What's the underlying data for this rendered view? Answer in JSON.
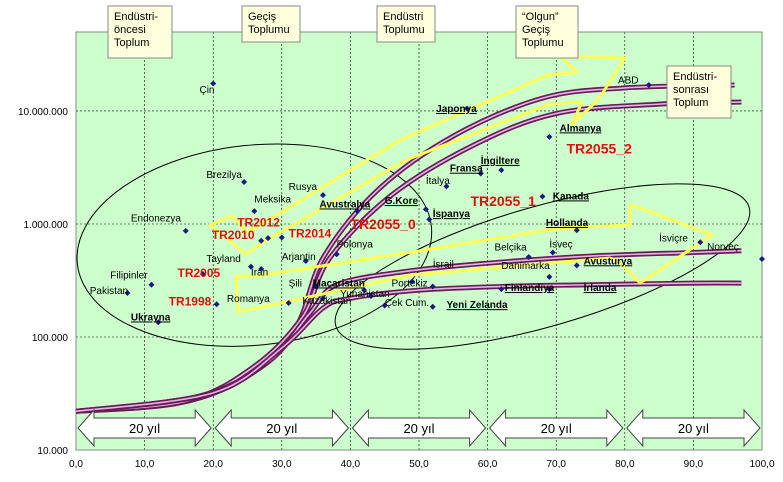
{
  "chart_data": {
    "type": "scatter",
    "title": "",
    "xlabel": "",
    "ylabel": "",
    "xlim": [
      0,
      100
    ],
    "ylim": [
      10000,
      50000000
    ],
    "y_scale": "log",
    "grid": true,
    "x_ticks": [
      "0,0",
      "10,0",
      "20,0",
      "30,0",
      "40,0",
      "50,0",
      "60,0",
      "70,0",
      "80,0",
      "90,0",
      "100,0"
    ],
    "y_ticks": [
      {
        "value": 10000,
        "label": "10.000"
      },
      {
        "value": 100000,
        "label": "100.000"
      },
      {
        "value": 1000000,
        "label": "1.000.000"
      },
      {
        "value": 10000000,
        "label": "10.000.000"
      }
    ],
    "stages": [
      {
        "label": "Endüstri-\nöncesi\nToplum",
        "x": 5.5
      },
      {
        "label": "Geçiş\nToplumu",
        "x": 25.0
      },
      {
        "label": "Endüstri\nToplumu",
        "x": 44.5
      },
      {
        "label": "“Olgun”\nGeçiş\nToplumu",
        "x": 64.5
      },
      {
        "label": "Endüstri-\nsonrası\nToplum",
        "x": 87.0
      }
    ],
    "period_arrows": [
      {
        "label": "20 yıl",
        "from": 0,
        "to": 20
      },
      {
        "label": "20 yıl",
        "from": 20,
        "to": 40
      },
      {
        "label": "20 yıl",
        "from": 40,
        "to": 60
      },
      {
        "label": "20 yıl",
        "from": 60,
        "to": 80
      },
      {
        "label": "20 yıl",
        "from": 80,
        "to": 100
      }
    ],
    "points": [
      {
        "name": "Çin",
        "x": 20.0,
        "y": 17500000,
        "style": "normal"
      },
      {
        "name": "ABD",
        "x": 83.5,
        "y": 17000000,
        "style": "normal"
      },
      {
        "name": "Japonya",
        "x": 57.0,
        "y": 10500000,
        "style": "underline"
      },
      {
        "name": "Almanya",
        "x": 69.0,
        "y": 5900000,
        "style": "underline"
      },
      {
        "name": "İngiltere",
        "x": 62.0,
        "y": 3000000,
        "style": "underline"
      },
      {
        "name": "Fransa",
        "x": 59.0,
        "y": 2800000,
        "style": "underline"
      },
      {
        "name": "İtalya",
        "x": 54.0,
        "y": 2150000,
        "style": "normal"
      },
      {
        "name": "Kanada",
        "x": 68.0,
        "y": 1750000,
        "style": "underline"
      },
      {
        "name": "Brezilya",
        "x": 24.5,
        "y": 2350000,
        "style": "normal"
      },
      {
        "name": "Rusya",
        "x": 36.0,
        "y": 1800000,
        "style": "normal"
      },
      {
        "name": "Meksika",
        "x": 26.0,
        "y": 1300000,
        "style": "normal"
      },
      {
        "name": "Avustralya",
        "x": 41.0,
        "y": 1300000,
        "style": "underline"
      },
      {
        "name": "G.Kore",
        "x": 51.0,
        "y": 1350000,
        "style": "underline"
      },
      {
        "name": "İspanya",
        "x": 51.5,
        "y": 1100000,
        "style": "underline"
      },
      {
        "name": "Hollanda",
        "x": 73.0,
        "y": 880000,
        "style": "underline"
      },
      {
        "name": "Endonezya",
        "x": 16.0,
        "y": 870000,
        "style": "normal"
      },
      {
        "name": "TR2012",
        "x": 28.0,
        "y": 750000,
        "style": "normal"
      },
      {
        "name": "TR2010",
        "x": 27.0,
        "y": 710000,
        "style": "normal"
      },
      {
        "name": "TR2014",
        "x": 30.0,
        "y": 760000,
        "style": "normal"
      },
      {
        "name": "İsviçre",
        "x": 91.0,
        "y": 690000,
        "style": "normal"
      },
      {
        "name": "Norveç",
        "x": 100.0,
        "y": 490000,
        "style": "normal"
      },
      {
        "name": "Polonya",
        "x": 38.0,
        "y": 540000,
        "style": "normal"
      },
      {
        "name": "Belçika",
        "x": 66.0,
        "y": 510000,
        "style": "normal"
      },
      {
        "name": "İsveç",
        "x": 69.5,
        "y": 560000,
        "style": "normal"
      },
      {
        "name": "Arjantin",
        "x": 33.5,
        "y": 470000,
        "style": "normal"
      },
      {
        "name": "Avusturya",
        "x": 73.0,
        "y": 430000,
        "style": "underline"
      },
      {
        "name": "Tayland",
        "x": 25.5,
        "y": 420000,
        "style": "normal"
      },
      {
        "name": "İran",
        "x": 27.0,
        "y": 400000,
        "style": "normal"
      },
      {
        "name": "Danimarka",
        "x": 69.0,
        "y": 340000,
        "style": "normal"
      },
      {
        "name": "TR2005",
        "x": 18.5,
        "y": 360000,
        "style": "normal"
      },
      {
        "name": "Filipinler",
        "x": 11.0,
        "y": 290000,
        "style": "normal"
      },
      {
        "name": "İsrail",
        "x": 49.0,
        "y": 310000,
        "style": "normal"
      },
      {
        "name": "Şili",
        "x": 35.0,
        "y": 280000,
        "style": "normal"
      },
      {
        "name": "Macaristan",
        "x": 42.0,
        "y": 260000,
        "style": "underline"
      },
      {
        "name": "Portekiz",
        "x": 52.0,
        "y": 280000,
        "style": "normal"
      },
      {
        "name": "Finlandiya",
        "x": 62.0,
        "y": 265000,
        "style": "underline"
      },
      {
        "name": "İrlanda",
        "x": 69.0,
        "y": 265000,
        "style": "underline"
      },
      {
        "name": "Pakistan",
        "x": 7.5,
        "y": 245000,
        "style": "normal"
      },
      {
        "name": "Kazakistan",
        "x": 36.0,
        "y": 220000,
        "style": "normal"
      },
      {
        "name": "Romanya",
        "x": 31.0,
        "y": 200000,
        "style": "normal"
      },
      {
        "name": "Yunanistan",
        "x": 43.0,
        "y": 230000,
        "style": "normal"
      },
      {
        "name": "Çek Cum.",
        "x": 45.0,
        "y": 190000,
        "style": "normal"
      },
      {
        "name": "Yeni Zelanda",
        "x": 52.0,
        "y": 185000,
        "style": "underline"
      },
      {
        "name": "TR1998",
        "x": 20.5,
        "y": 195000,
        "style": "normal"
      },
      {
        "name": "Ukrayna",
        "x": 12.0,
        "y": 135000,
        "style": "underline"
      }
    ],
    "labels": [
      {
        "text": "Çin",
        "x": 18.0,
        "y": 14500000,
        "style": "normal"
      },
      {
        "text": "ABD",
        "x": 79.0,
        "y": 17500000,
        "style": "normal"
      },
      {
        "text": "Japonya",
        "x": 52.5,
        "y": 9800000,
        "style": "underline"
      },
      {
        "text": "Almanya",
        "x": 70.5,
        "y": 6600000,
        "style": "underline"
      },
      {
        "text": "İngiltere",
        "x": 59.0,
        "y": 3400000,
        "style": "underline"
      },
      {
        "text": "Fransa",
        "x": 54.5,
        "y": 2900000,
        "style": "underline"
      },
      {
        "text": "İtalya",
        "x": 51.0,
        "y": 2250000,
        "style": "normal"
      },
      {
        "text": "Kanada",
        "x": 69.5,
        "y": 1650000,
        "style": "underline"
      },
      {
        "text": "Brezilya",
        "x": 19.0,
        "y": 2550000,
        "style": "normal"
      },
      {
        "text": "Rusya",
        "x": 31.0,
        "y": 2000000,
        "style": "normal"
      },
      {
        "text": "Meksika",
        "x": 26.0,
        "y": 1550000,
        "style": "normal"
      },
      {
        "text": "Avustralya",
        "x": 35.5,
        "y": 1400000,
        "style": "underline"
      },
      {
        "text": "G.Kore",
        "x": 45.0,
        "y": 1500000,
        "style": "underline"
      },
      {
        "text": "İspanya",
        "x": 52.0,
        "y": 1150000,
        "style": "underline"
      },
      {
        "text": "Hollanda",
        "x": 68.5,
        "y": 960000,
        "style": "underline"
      },
      {
        "text": "Endonezya",
        "x": 8.0,
        "y": 1050000,
        "style": "normal"
      },
      {
        "text": "İsviçre",
        "x": 85.0,
        "y": 700000,
        "style": "normal"
      },
      {
        "text": "Norveç",
        "x": 92.0,
        "y": 590000,
        "style": "normal"
      },
      {
        "text": "Polonya",
        "x": 38.0,
        "y": 620000,
        "style": "normal"
      },
      {
        "text": "Belçika",
        "x": 61.0,
        "y": 580000,
        "style": "normal"
      },
      {
        "text": "İsveç",
        "x": 69.0,
        "y": 620000,
        "style": "normal"
      },
      {
        "text": "Arjantin",
        "x": 30.0,
        "y": 480000,
        "style": "normal"
      },
      {
        "text": "Avusturya",
        "x": 74.0,
        "y": 440000,
        "style": "underline"
      },
      {
        "text": "Tayland",
        "x": 19.0,
        "y": 460000,
        "style": "normal"
      },
      {
        "text": "İsrail",
        "x": 52.0,
        "y": 410000,
        "style": "normal"
      },
      {
        "text": "Danimarka",
        "x": 62.0,
        "y": 400000,
        "style": "normal"
      },
      {
        "text": "Filipinler",
        "x": 5.0,
        "y": 330000,
        "style": "normal"
      },
      {
        "text": "Şili",
        "x": 31.0,
        "y": 280000,
        "style": "normal"
      },
      {
        "text": "Macaristan",
        "x": 34.5,
        "y": 280000,
        "style": "underline"
      },
      {
        "text": "Portekiz",
        "x": 46.0,
        "y": 280000,
        "style": "normal"
      },
      {
        "text": "Finlandiya",
        "x": 62.5,
        "y": 255000,
        "style": "underline"
      },
      {
        "text": "İrlanda",
        "x": 74.0,
        "y": 255000,
        "style": "underline"
      },
      {
        "text": "Pakistan",
        "x": 2.0,
        "y": 240000,
        "style": "normal"
      },
      {
        "text": "Kazakistan",
        "x": 33.0,
        "y": 195000,
        "style": "normal"
      },
      {
        "text": "Romanya",
        "x": 22.0,
        "y": 205000,
        "style": "normal"
      },
      {
        "text": "Yunanistan",
        "x": 38.5,
        "y": 225000,
        "style": "normal"
      },
      {
        "text": "Çek Cum.",
        "x": 45.0,
        "y": 188000,
        "style": "normal"
      },
      {
        "text": "Yeni Zelanda",
        "x": 54.0,
        "y": 180000,
        "style": "underline"
      },
      {
        "text": "Ukrayna",
        "x": 8.0,
        "y": 140000,
        "style": "underline"
      },
      {
        "text": "İran",
        "x": 25.5,
        "y": 350000,
        "style": "normal"
      }
    ],
    "red_labels": [
      {
        "text": "TR1998",
        "x": 13.5,
        "y": 190000
      },
      {
        "text": "TR2005",
        "x": 14.8,
        "y": 340000
      },
      {
        "text": "TR2010",
        "x": 19.8,
        "y": 740000
      },
      {
        "text": "TR2012",
        "x": 23.5,
        "y": 950000
      },
      {
        "text": "TR2014",
        "x": 31.0,
        "y": 760000
      },
      {
        "text": "TR2055_0",
        "x": 40.0,
        "y": 900000
      },
      {
        "text": "TR2055_1",
        "x": 57.5,
        "y": 1450000
      },
      {
        "text": "TR2055_2",
        "x": 71.5,
        "y": 4200000
      }
    ]
  }
}
